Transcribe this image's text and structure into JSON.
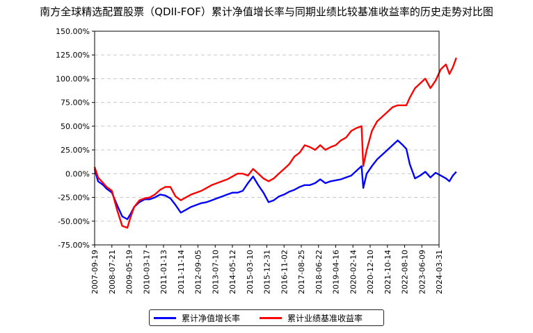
{
  "chart_data": {
    "type": "line",
    "title": "南方全球精选配置股票（QDII-FOF）累计净值增长率与同期业绩比较基准收益率的历史走势对比图",
    "xlabel": "",
    "ylabel": "",
    "ylim": [
      -75,
      150
    ],
    "yticks": [
      "150.00%",
      "125.00%",
      "100.00%",
      "75.00%",
      "50.00%",
      "25.00%",
      "0.00%",
      "-25.00%",
      "-50.00%",
      "-75.00%"
    ],
    "xticks": [
      "2007-09-19",
      "2008-07-21",
      "2009-05-19",
      "2010-03-17",
      "2011-01-13",
      "2011-11-14",
      "2012-09-05",
      "2013-07-10",
      "2014-05-12",
      "2015-03-10",
      "2015-12-31",
      "2016-11-02",
      "2017-08-25",
      "2018-06-22",
      "2019-04-16",
      "2020-02-14",
      "2020-12-10",
      "2021-10-14",
      "2022-08-10",
      "2023-06-09",
      "2024-03-31"
    ],
    "grid": "horizontal-dashed",
    "legend": "bottom-center",
    "series": [
      {
        "name": "累计净值增长率",
        "color": "#0000ff",
        "points": [
          [
            0,
            5
          ],
          [
            0.2,
            -8
          ],
          [
            0.5,
            -12
          ],
          [
            0.7,
            -16
          ],
          [
            1.0,
            -20
          ],
          [
            1.3,
            -33
          ],
          [
            1.6,
            -45
          ],
          [
            1.9,
            -48
          ],
          [
            2.1,
            -42
          ],
          [
            2.3,
            -35
          ],
          [
            2.6,
            -30
          ],
          [
            2.9,
            -27
          ],
          [
            3.2,
            -27
          ],
          [
            3.5,
            -25
          ],
          [
            3.8,
            -22
          ],
          [
            4.1,
            -23
          ],
          [
            4.4,
            -26
          ],
          [
            4.7,
            -33
          ],
          [
            5.0,
            -41
          ],
          [
            5.3,
            -38
          ],
          [
            5.6,
            -35
          ],
          [
            5.9,
            -33
          ],
          [
            6.2,
            -31
          ],
          [
            6.5,
            -30
          ],
          [
            6.8,
            -28
          ],
          [
            7.1,
            -26
          ],
          [
            7.4,
            -24
          ],
          [
            7.7,
            -22
          ],
          [
            8.0,
            -20
          ],
          [
            8.3,
            -20
          ],
          [
            8.6,
            -18
          ],
          [
            8.9,
            -10
          ],
          [
            9.2,
            -3
          ],
          [
            9.5,
            -12
          ],
          [
            9.8,
            -20
          ],
          [
            10.1,
            -30
          ],
          [
            10.4,
            -28
          ],
          [
            10.7,
            -24
          ],
          [
            11.0,
            -22
          ],
          [
            11.3,
            -19
          ],
          [
            11.6,
            -17
          ],
          [
            11.9,
            -14
          ],
          [
            12.2,
            -12
          ],
          [
            12.5,
            -12
          ],
          [
            12.8,
            -10
          ],
          [
            13.1,
            -6
          ],
          [
            13.4,
            -10
          ],
          [
            13.7,
            -8
          ],
          [
            14.0,
            -7
          ],
          [
            14.3,
            -6
          ],
          [
            14.6,
            -4
          ],
          [
            14.9,
            -2
          ],
          [
            15.2,
            3
          ],
          [
            15.5,
            8
          ],
          [
            15.6,
            -15
          ],
          [
            15.8,
            0
          ],
          [
            16.1,
            8
          ],
          [
            16.4,
            15
          ],
          [
            16.7,
            20
          ],
          [
            17.0,
            25
          ],
          [
            17.3,
            30
          ],
          [
            17.6,
            35
          ],
          [
            17.9,
            30
          ],
          [
            18.1,
            26
          ],
          [
            18.3,
            10
          ],
          [
            18.6,
            -5
          ],
          [
            18.9,
            -2
          ],
          [
            19.2,
            2
          ],
          [
            19.5,
            -4
          ],
          [
            19.8,
            1
          ],
          [
            20.1,
            -2
          ],
          [
            20.4,
            -5
          ],
          [
            20.6,
            -8
          ],
          [
            20.8,
            -2
          ],
          [
            21.0,
            2
          ]
        ]
      },
      {
        "name": "累计业绩基准收益率",
        "color": "#ff0000",
        "points": [
          [
            0,
            7
          ],
          [
            0.2,
            -4
          ],
          [
            0.5,
            -10
          ],
          [
            0.7,
            -14
          ],
          [
            1.0,
            -18
          ],
          [
            1.3,
            -38
          ],
          [
            1.6,
            -55
          ],
          [
            1.9,
            -57
          ],
          [
            2.1,
            -45
          ],
          [
            2.3,
            -35
          ],
          [
            2.6,
            -28
          ],
          [
            2.9,
            -26
          ],
          [
            3.2,
            -25
          ],
          [
            3.5,
            -22
          ],
          [
            3.8,
            -17
          ],
          [
            4.1,
            -14
          ],
          [
            4.4,
            -14
          ],
          [
            4.7,
            -24
          ],
          [
            5.0,
            -28
          ],
          [
            5.3,
            -25
          ],
          [
            5.6,
            -22
          ],
          [
            5.9,
            -20
          ],
          [
            6.2,
            -18
          ],
          [
            6.5,
            -15
          ],
          [
            6.8,
            -12
          ],
          [
            7.1,
            -10
          ],
          [
            7.4,
            -8
          ],
          [
            7.7,
            -6
          ],
          [
            8.0,
            -3
          ],
          [
            8.3,
            0
          ],
          [
            8.6,
            0
          ],
          [
            8.9,
            -2
          ],
          [
            9.2,
            5
          ],
          [
            9.5,
            0
          ],
          [
            9.8,
            -5
          ],
          [
            10.1,
            -8
          ],
          [
            10.4,
            -5
          ],
          [
            10.7,
            0
          ],
          [
            11.0,
            5
          ],
          [
            11.3,
            10
          ],
          [
            11.6,
            18
          ],
          [
            11.9,
            22
          ],
          [
            12.2,
            30
          ],
          [
            12.5,
            28
          ],
          [
            12.8,
            25
          ],
          [
            13.1,
            30
          ],
          [
            13.4,
            25
          ],
          [
            13.7,
            28
          ],
          [
            14.0,
            30
          ],
          [
            14.3,
            35
          ],
          [
            14.6,
            38
          ],
          [
            14.9,
            45
          ],
          [
            15.2,
            48
          ],
          [
            15.5,
            50
          ],
          [
            15.6,
            8
          ],
          [
            15.8,
            25
          ],
          [
            16.1,
            45
          ],
          [
            16.4,
            55
          ],
          [
            16.7,
            60
          ],
          [
            17.0,
            65
          ],
          [
            17.3,
            70
          ],
          [
            17.6,
            72
          ],
          [
            17.9,
            72
          ],
          [
            18.1,
            72
          ],
          [
            18.3,
            80
          ],
          [
            18.6,
            90
          ],
          [
            18.9,
            95
          ],
          [
            19.2,
            100
          ],
          [
            19.5,
            90
          ],
          [
            19.8,
            98
          ],
          [
            20.1,
            110
          ],
          [
            20.4,
            115
          ],
          [
            20.6,
            105
          ],
          [
            20.8,
            112
          ],
          [
            21.0,
            122
          ]
        ]
      }
    ]
  }
}
